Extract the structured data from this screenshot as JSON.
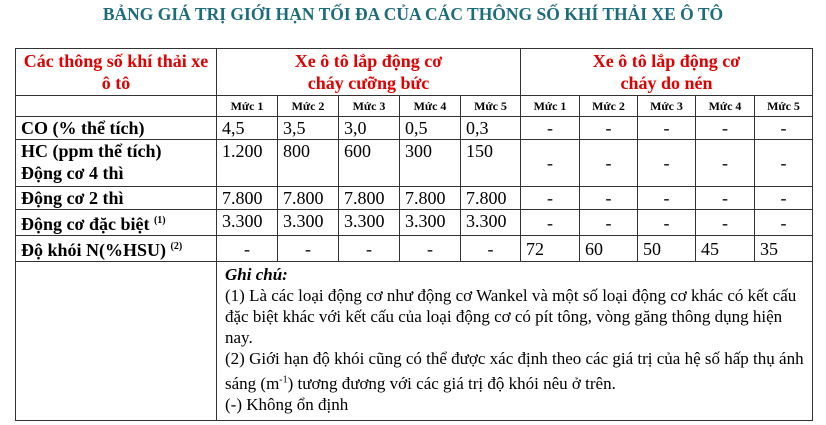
{
  "title": "BẢNG GIÁ TRỊ GIỚI HẠN TỐI ĐA CỦA CÁC THÔNG SỐ KHÍ THẢI XE Ô TÔ",
  "colors": {
    "title": "#1b6d7c",
    "header": "#e00000"
  },
  "table": {
    "header": {
      "param": "Các thông số khí thải xe ô tô",
      "group1": "Xe ô tô lắp động cơ cháy cưỡng bức",
      "group2": "Xe ô tô lắp động cơ cháy do nén"
    },
    "levels": [
      "Mức 1",
      "Mức 2",
      "Mức 3",
      "Mức 4",
      "Mức 5",
      "Mức 1",
      "Mức 2",
      "Mức 3",
      "Mức 4",
      "Mức 5"
    ],
    "rows": [
      {
        "label": "CO (% thể tích)",
        "sup": "",
        "values": [
          "4,5",
          "3,5",
          "3,0",
          "0,5",
          "0,3",
          "-",
          "-",
          "-",
          "-",
          "-"
        ]
      },
      {
        "label": "HC (ppm thể tích)",
        "label2": "Động cơ 4 thì",
        "sup": "",
        "values": [
          "1.200",
          "800",
          "600",
          "300",
          "150",
          "-",
          "-",
          "-",
          "-",
          "-"
        ]
      },
      {
        "label": "Động cơ 2 thì",
        "sup": "",
        "values": [
          "7.800",
          "7.800",
          "7.800",
          "7.800",
          "7.800",
          "-",
          "-",
          "-",
          "-",
          "-"
        ]
      },
      {
        "label": "Động cơ đặc biệt ",
        "sup": "(1)",
        "values": [
          "3.300",
          "3.300",
          "3.300",
          "3.300",
          "3.300",
          "-",
          "-",
          "-",
          "-",
          "-"
        ]
      },
      {
        "label": "Độ khói N(%HSU) ",
        "sup": "(2)",
        "values": [
          "-",
          "-",
          "-",
          "-",
          "-",
          "72",
          "60",
          "50",
          "45",
          "35"
        ]
      }
    ],
    "notes": {
      "heading": "Ghi chú:",
      "line1": "(1) Là các loại động cơ như động cơ Wankel và một số loại động cơ khác có kết cấu đặc biệt khác với kết cấu của loại động cơ có pít tông, vòng găng thông dụng hiện nay.",
      "line2a": "(2) Giới hạn độ khói cũng có thể được xác định theo các giá trị của hệ số hấp thụ ánh sáng (m",
      "line2sup": "-1",
      "line2b": ") tương đương với các giá trị độ khói nêu ở trên.",
      "line3": "(-) Không ổn định"
    }
  }
}
